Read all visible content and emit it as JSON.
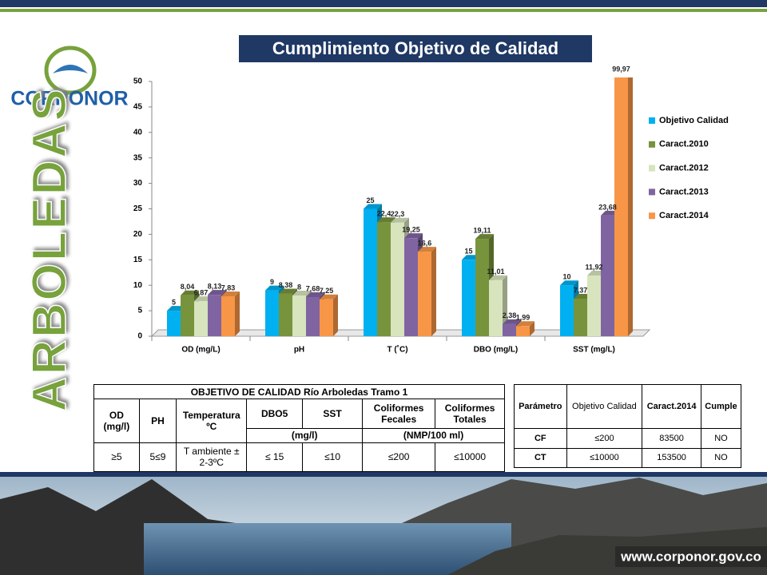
{
  "header": {
    "logo_text": "CORPONOR",
    "site_name": "ARBOLEDAS"
  },
  "chart_data": {
    "type": "bar",
    "title": "Cumplimiento Objetivo de Calidad",
    "categories": [
      "OD (mg/L)",
      "pH",
      "T (˚C)",
      "DBO (mg/L)",
      "SST (mg/L)"
    ],
    "series": [
      {
        "name": "Objetivo Calidad",
        "color": "#00b0f0",
        "values": [
          5,
          9,
          25,
          15,
          10
        ],
        "value_labels": [
          "5",
          "9",
          "25",
          "15",
          "10"
        ]
      },
      {
        "name": "Caract.2010",
        "color": "#77933c",
        "values": [
          8.04,
          8.38,
          22.4,
          19.11,
          7.37
        ],
        "value_labels": [
          "8,04",
          "8,38",
          "22,4",
          "19,11",
          "7,37"
        ]
      },
      {
        "name": "Caract.2012",
        "color": "#d7e4bd",
        "values": [
          6.87,
          8,
          22.3,
          11.01,
          11.92
        ],
        "value_labels": [
          "6,87",
          "8",
          "22,3",
          "11,01",
          "11,92"
        ]
      },
      {
        "name": "Caract.2013",
        "color": "#8064a2",
        "values": [
          8.13,
          7.68,
          19.25,
          2.38,
          23.68
        ],
        "value_labels": [
          "8,13",
          "7,68",
          "19,25",
          "2,38",
          "23,68"
        ]
      },
      {
        "name": "Caract.2014",
        "color": "#f79646",
        "values": [
          7.83,
          7.25,
          16.6,
          1.99,
          99.97
        ],
        "value_labels": [
          "7,83",
          "7,25",
          "16,6",
          "1,99",
          "99,97"
        ]
      }
    ],
    "ylim": [
      0,
      50
    ],
    "yticks": [
      0,
      5,
      10,
      15,
      20,
      25,
      30,
      35,
      40,
      45,
      50
    ],
    "grid": false,
    "legend": "right"
  },
  "objective_table": {
    "title": "OBJETIVO DE CALIDAD Río Arboledas Tramo 1",
    "headers": [
      "OD (mg/l)",
      "PH",
      "Temperatura ºC",
      "DBO5",
      "SST",
      "Coliformes Fecales",
      "Coliformes Totales"
    ],
    "units": [
      "(mg/l)",
      "(NMP/100 ml)"
    ],
    "rows": [
      [
        "≥5",
        "5≤9",
        "T ambiente ± 2-3ºC",
        "≤ 15",
        "≤10",
        "≤200",
        "≤10000"
      ]
    ]
  },
  "compliance_table": {
    "headers": [
      "Parámetro",
      "Objetivo Calidad",
      "Caract.2014",
      "Cumple"
    ],
    "rows": [
      [
        "CF",
        "≤200",
        "83500",
        "NO"
      ],
      [
        "CT",
        "≤10000",
        "153500",
        "NO"
      ]
    ]
  },
  "footer": {
    "url": "www.corponor.gov.co"
  }
}
